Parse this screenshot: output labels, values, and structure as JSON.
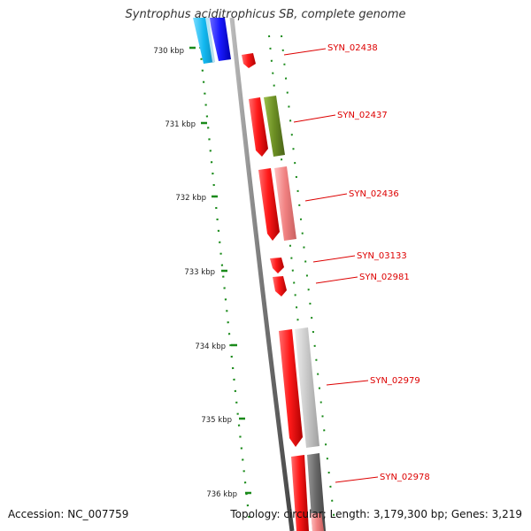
{
  "title": "Syntrophus aciditrophicus SB, complete genome",
  "accession": "Accession: NC_007759",
  "summary": "Topology: circular; Length: 3,179,300 bp; Genes: 3,219",
  "ruler_ticks": [
    "730 kbp",
    "731 kbp",
    "732 kbp",
    "733 kbp",
    "734 kbp",
    "735 kbp",
    "736 kbp"
  ],
  "gene_labels": [
    "SYN_02438",
    "SYN_02437",
    "SYN_02436",
    "SYN_03133",
    "SYN_02981",
    "SYN_02979",
    "SYN_02978"
  ],
  "colors": {
    "gene_red": "#ff1a1a",
    "label_red": "#dd0000",
    "ruler_green": "#1a8a1a",
    "olive": "#6b8e23",
    "pink": "#f08080",
    "light_gray": "#c8c8c8",
    "dark_gray": "#666666",
    "cyan": "#12b8f0",
    "blue": "#1a1aff",
    "backbone": "#888888"
  }
}
